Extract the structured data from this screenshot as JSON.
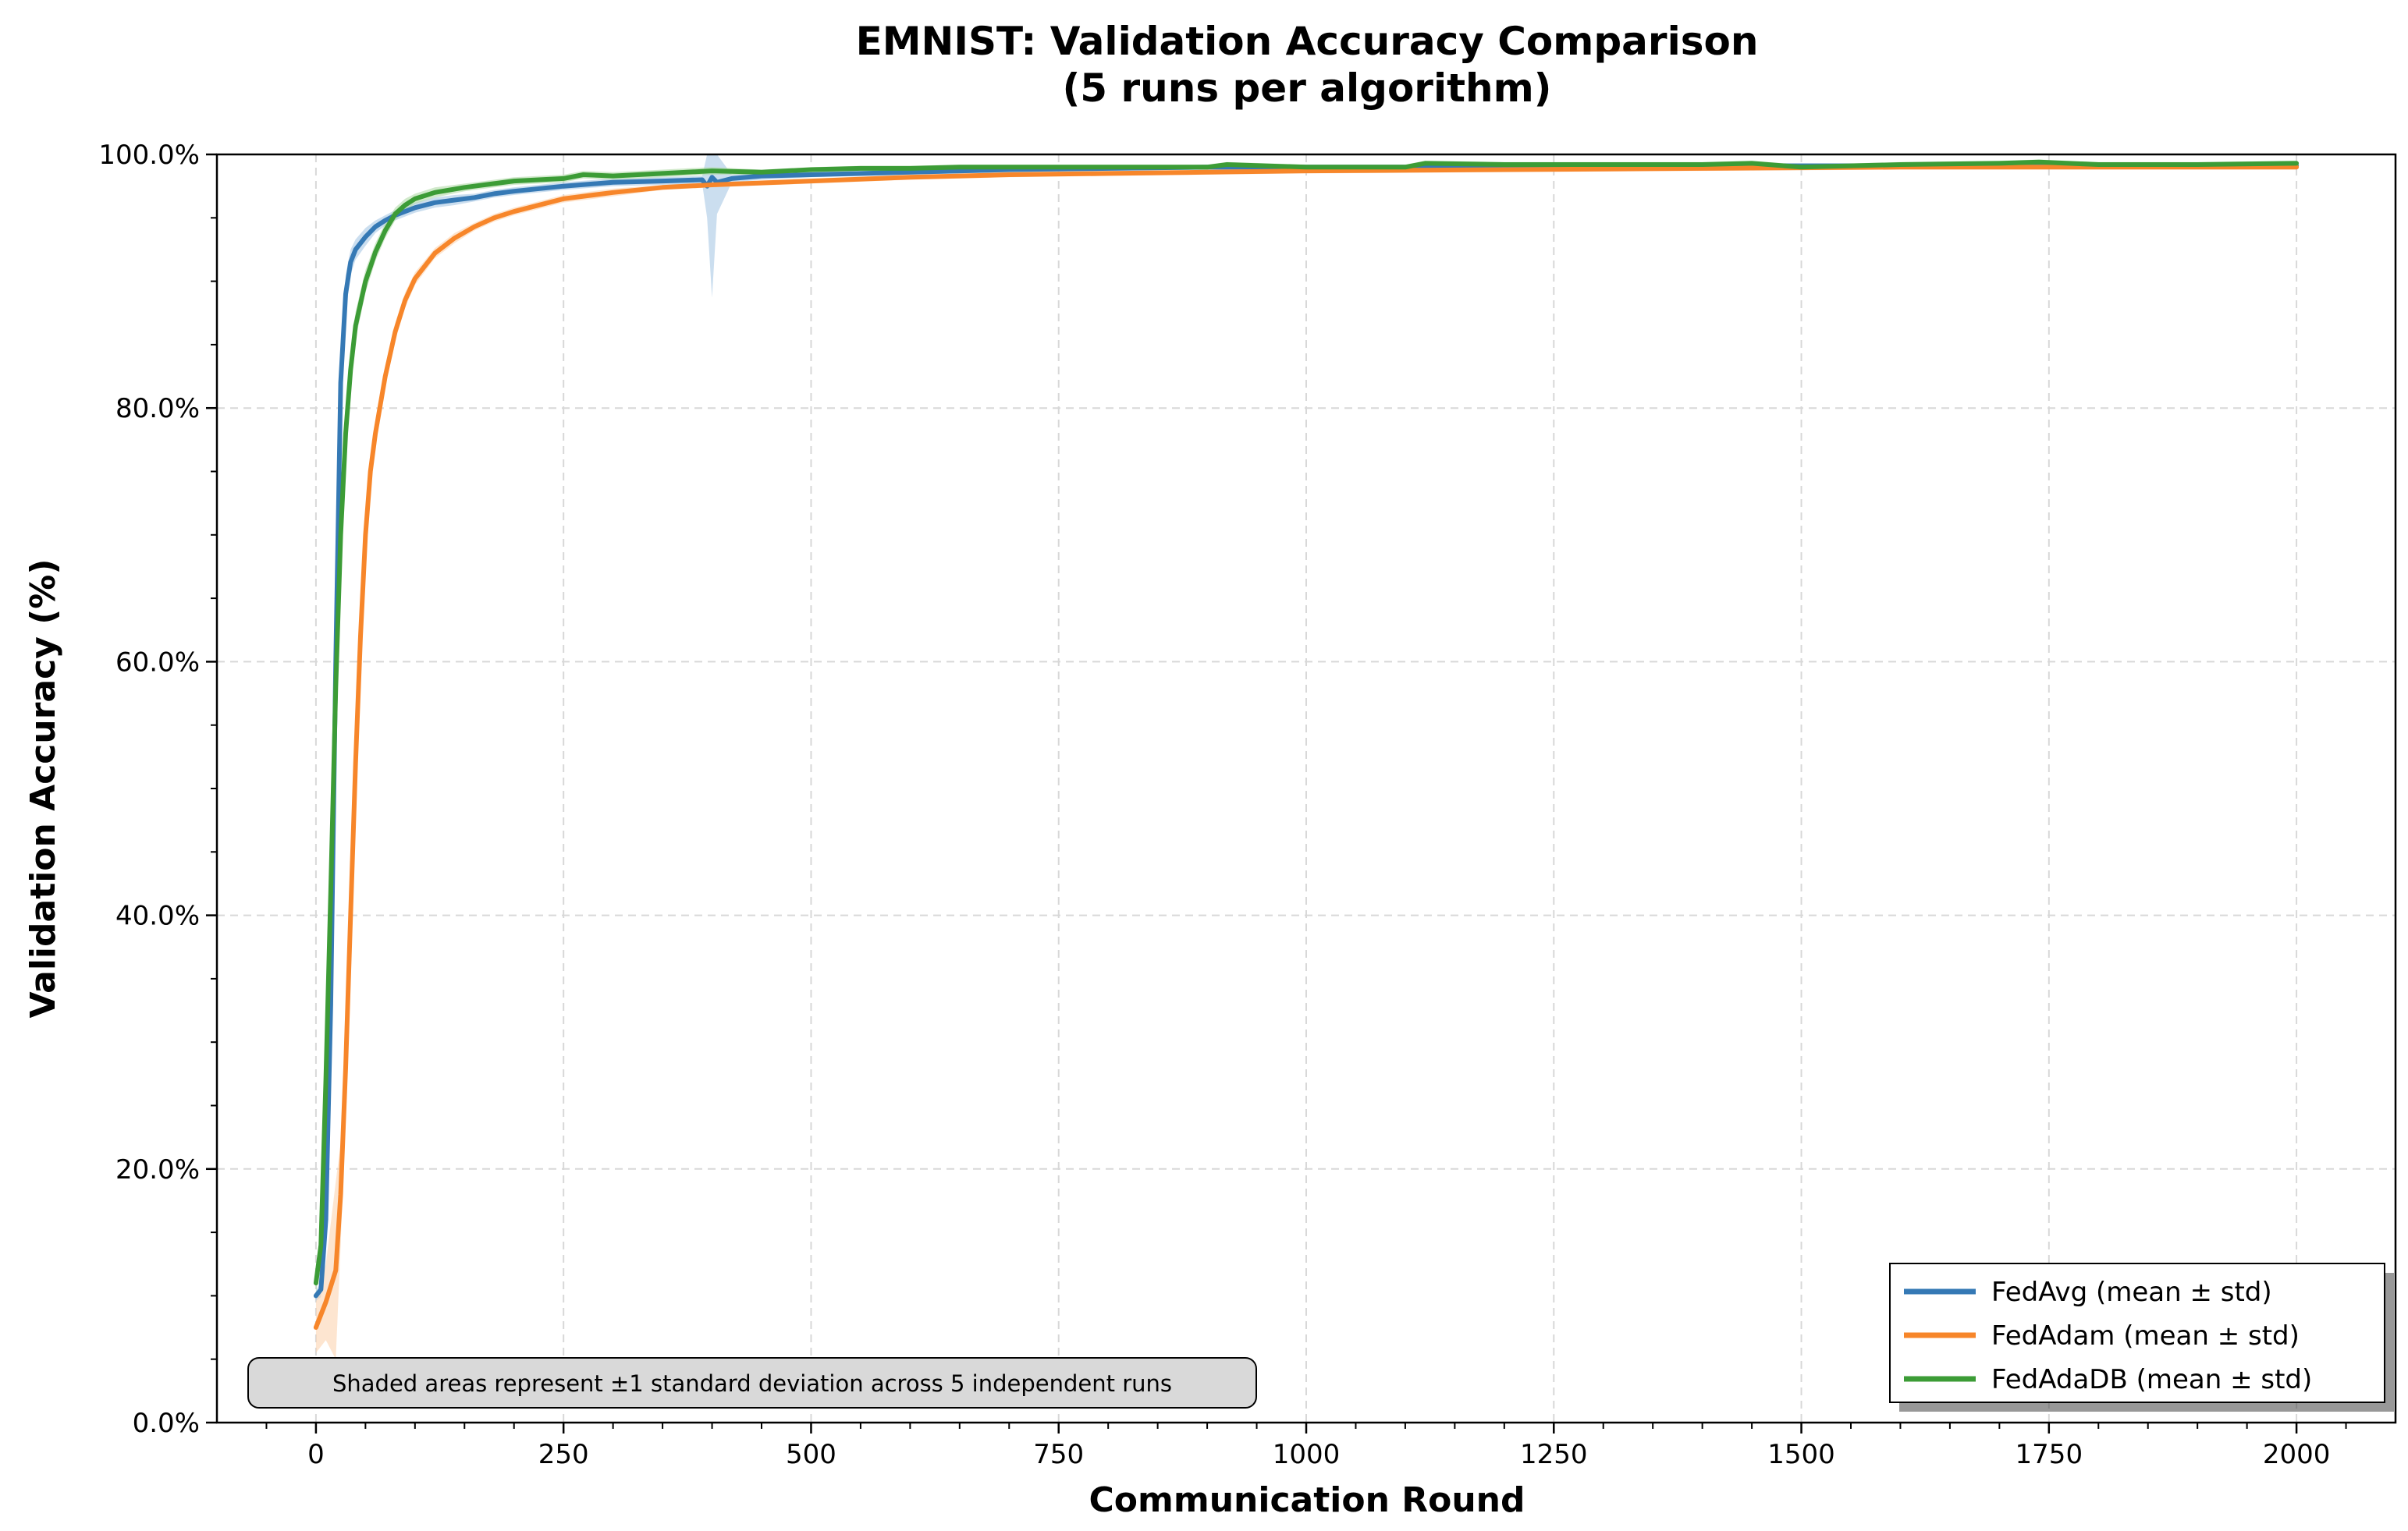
{
  "chart_data": {
    "type": "line",
    "title": "EMNIST: Validation Accuracy Comparison",
    "subtitle": "(5 runs per algorithm)",
    "xlabel": "Communication Round",
    "ylabel": "Validation Accuracy (%)",
    "xlim": [
      -100,
      2100
    ],
    "ylim": [
      0,
      100
    ],
    "x_ticks": [
      0,
      250,
      500,
      750,
      1000,
      1250,
      1500,
      1750,
      2000
    ],
    "x_tick_labels": [
      "0",
      "250",
      "500",
      "750",
      "1000",
      "1250",
      "1500",
      "1750",
      "2000"
    ],
    "y_ticks": [
      0,
      20,
      40,
      60,
      80,
      100
    ],
    "y_tick_labels": [
      "0.0%",
      "20.0%",
      "40.0%",
      "60.0%",
      "80.0%",
      "100.0%"
    ],
    "grid": true,
    "legend_position": "bottom-right",
    "series": [
      {
        "name": "FedAvg (mean ± std)",
        "color": "#3579b5",
        "fill": "#a8c8e4",
        "x": [
          0,
          5,
          10,
          15,
          20,
          25,
          30,
          35,
          40,
          50,
          60,
          70,
          80,
          100,
          120,
          140,
          160,
          180,
          200,
          250,
          300,
          350,
          390,
          395,
          400,
          405,
          420,
          450,
          500,
          600,
          700,
          800,
          900,
          1000,
          1100,
          1200,
          1300,
          1400,
          1500,
          1600,
          1700,
          1800,
          1900,
          2000
        ],
        "values": [
          10,
          10.5,
          16,
          33,
          60,
          82,
          89,
          91.5,
          92.5,
          93.5,
          94.3,
          94.8,
          95.2,
          95.8,
          96.2,
          96.4,
          96.6,
          96.9,
          97.1,
          97.5,
          97.8,
          97.9,
          98.0,
          97.5,
          98.2,
          97.8,
          98.1,
          98.3,
          98.4,
          98.6,
          98.8,
          98.9,
          99.0,
          99.0,
          99.0,
          99.0,
          99.0,
          99.1,
          99.1,
          99.1,
          99.1,
          99.1,
          99.1,
          99.1
        ],
        "std": [
          0.4,
          0.6,
          1.5,
          3,
          3,
          2,
          1.5,
          1,
          0.8,
          0.7,
          0.5,
          0.4,
          0.4,
          0.4,
          0.4,
          0.4,
          0.3,
          0.3,
          0.3,
          0.3,
          0.3,
          0.3,
          0.3,
          2.5,
          9.5,
          2.5,
          0.3,
          0.3,
          0.2,
          0.2,
          0.2,
          0.2,
          0.2,
          0.2,
          0.2,
          0.2,
          0.2,
          0.2,
          0.2,
          0.2,
          0.2,
          0.2,
          0.2,
          0.2
        ]
      },
      {
        "name": "FedAdam (mean ± std)",
        "color": "#f7862a",
        "fill": "#fcd3b0",
        "x": [
          0,
          10,
          20,
          25,
          30,
          35,
          40,
          45,
          50,
          55,
          60,
          70,
          80,
          90,
          100,
          120,
          140,
          160,
          180,
          200,
          250,
          300,
          350,
          400,
          500,
          600,
          700,
          800,
          900,
          1000,
          1200,
          1400,
          1600,
          1800,
          2000
        ],
        "values": [
          7.5,
          9.5,
          12,
          18,
          28,
          40,
          52,
          62,
          70,
          75,
          78,
          82.5,
          86,
          88.5,
          90.2,
          92.2,
          93.4,
          94.3,
          95.0,
          95.5,
          96.5,
          97.0,
          97.4,
          97.6,
          97.9,
          98.2,
          98.4,
          98.5,
          98.6,
          98.7,
          98.8,
          98.9,
          99.0,
          99.0,
          99.0
        ],
        "std": [
          2,
          3,
          7,
          4,
          3,
          3,
          2,
          2,
          1.5,
          1.2,
          1,
          0.8,
          0.7,
          0.6,
          0.5,
          0.4,
          0.4,
          0.3,
          0.3,
          0.3,
          0.3,
          0.3,
          0.2,
          0.2,
          0.2,
          0.2,
          0.2,
          0.2,
          0.2,
          0.2,
          0.2,
          0.2,
          0.2,
          0.2,
          0.2
        ]
      },
      {
        "name": "FedAdaDB (mean ± std)",
        "color": "#3c9c36",
        "fill": "#b3dba9",
        "x": [
          0,
          5,
          10,
          15,
          20,
          25,
          30,
          35,
          40,
          50,
          60,
          70,
          80,
          90,
          100,
          120,
          150,
          180,
          200,
          250,
          270,
          300,
          350,
          400,
          450,
          500,
          550,
          600,
          650,
          700,
          800,
          900,
          920,
          1000,
          1100,
          1120,
          1200,
          1300,
          1400,
          1450,
          1500,
          1600,
          1700,
          1740,
          1800,
          1900,
          2000
        ],
        "values": [
          11,
          14,
          27,
          42,
          58,
          70,
          78,
          83,
          86.5,
          90,
          92.3,
          94,
          95.3,
          96,
          96.5,
          97.0,
          97.4,
          97.7,
          97.9,
          98.1,
          98.4,
          98.3,
          98.5,
          98.7,
          98.6,
          98.8,
          98.9,
          98.9,
          99.0,
          99.0,
          99.0,
          99.0,
          99.2,
          99.0,
          99.0,
          99.3,
          99.2,
          99.2,
          99.2,
          99.3,
          99.0,
          99.2,
          99.3,
          99.4,
          99.2,
          99.2,
          99.3
        ],
        "std": [
          0.8,
          1.2,
          2,
          2.5,
          2.5,
          2,
          1.6,
          1.3,
          1.1,
          0.9,
          0.7,
          0.6,
          0.5,
          0.5,
          0.4,
          0.4,
          0.3,
          0.3,
          0.3,
          0.3,
          0.3,
          0.3,
          0.3,
          0.3,
          0.2,
          0.2,
          0.2,
          0.2,
          0.2,
          0.2,
          0.2,
          0.2,
          0.2,
          0.2,
          0.2,
          0.2,
          0.2,
          0.2,
          0.2,
          0.2,
          0.2,
          0.2,
          0.2,
          0.2,
          0.2,
          0.2,
          0.2
        ]
      }
    ],
    "annotation": "Shaded areas represent ±1 standard deviation across 5 independent runs"
  }
}
